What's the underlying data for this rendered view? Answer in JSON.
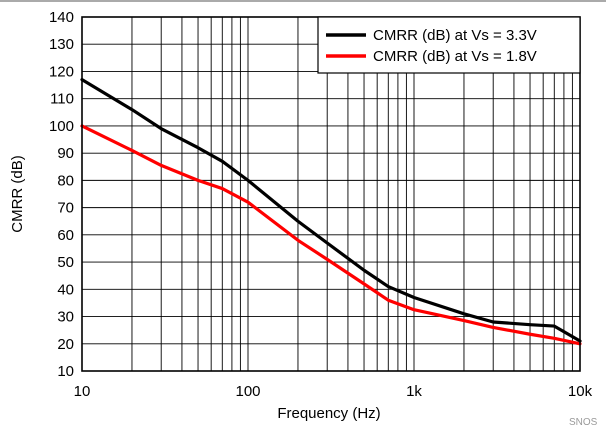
{
  "chart_data": {
    "type": "line",
    "xlabel": "Frequency (Hz)",
    "ylabel": "CMRR (dB)",
    "xscale": "log",
    "xlim": [
      10,
      10000
    ],
    "ylim": [
      10,
      140
    ],
    "x_ticks": [
      10,
      100,
      1000,
      10000
    ],
    "x_tick_labels": [
      "10",
      "100",
      "1k",
      "10k"
    ],
    "y_ticks": [
      10,
      20,
      30,
      40,
      50,
      60,
      70,
      80,
      90,
      100,
      110,
      120,
      130,
      140
    ],
    "y_tick_labels": [
      "10",
      "20",
      "30",
      "40",
      "50",
      "60",
      "70",
      "80",
      "90",
      "100",
      "110",
      "120",
      "130",
      "140"
    ],
    "grid": true,
    "legend_position": "top-right",
    "series": [
      {
        "name": "CMRR (dB) at Vs = 3.3V",
        "color": "#000000",
        "x": [
          10,
          20,
          30,
          50,
          70,
          100,
          200,
          300,
          500,
          700,
          1000,
          2000,
          3000,
          5000,
          7000,
          10000
        ],
        "y": [
          117,
          106,
          99,
          92,
          87,
          80,
          65,
          57,
          47,
          41,
          37,
          31,
          28,
          27,
          26.5,
          21
        ]
      },
      {
        "name": "CMRR (dB) at Vs = 1.8V",
        "color": "#ff0000",
        "x": [
          10,
          20,
          30,
          50,
          70,
          100,
          200,
          300,
          500,
          700,
          1000,
          2000,
          3000,
          5000,
          7000,
          10000
        ],
        "y": [
          100,
          91,
          85.5,
          80,
          77,
          72,
          58,
          51,
          42,
          36,
          32.5,
          28.5,
          26,
          23.5,
          22,
          20
        ]
      }
    ]
  },
  "watermark": "SNOS"
}
